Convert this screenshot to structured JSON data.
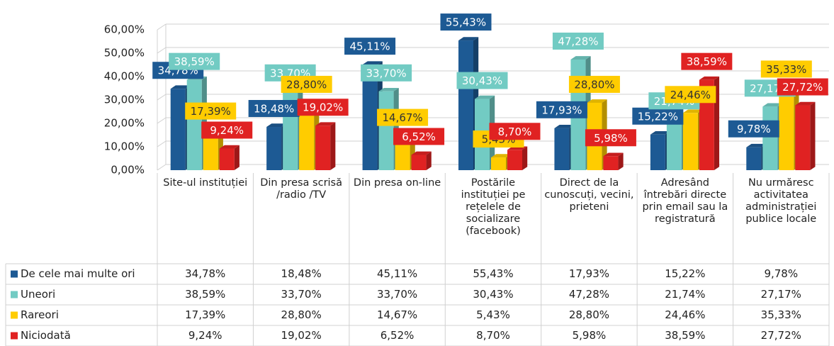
{
  "chart_data": {
    "type": "bar",
    "categories": [
      "Site-ul instituției",
      "Din presa scrisă /radio /TV",
      "Din presa on-line",
      "Postările instituției pe rețelele de socializare (facebook)",
      "Direct de la cunoscuți, vecini, prieteni",
      "Adresând întrebări directe prin email sau la registratură",
      "Nu urmăresc activitatea administrației publice locale"
    ],
    "series": [
      {
        "name": "De cele mai multe ori",
        "color": "#1d5a94",
        "values": [
          34.78,
          18.48,
          45.11,
          55.43,
          17.93,
          15.22,
          9.78
        ],
        "value_labels": [
          "34,78%",
          "18,48%",
          "45,11%",
          "55,43%",
          "17,93%",
          "15,22%",
          "9,78%"
        ]
      },
      {
        "name": "Uneori",
        "color": "#72cbc3",
        "values": [
          38.59,
          33.7,
          33.7,
          30.43,
          47.28,
          21.74,
          27.17
        ],
        "value_labels": [
          "38,59%",
          "33,70%",
          "33,70%",
          "30,43%",
          "47,28%",
          "21,74%",
          "27,17%"
        ]
      },
      {
        "name": "Rareori",
        "color": "#ffcc00",
        "values": [
          17.39,
          28.8,
          14.67,
          5.43,
          28.8,
          24.46,
          35.33
        ],
        "value_labels": [
          "17,39%",
          "28,80%",
          "14,67%",
          "5,43%",
          "28,80%",
          "24,46%",
          "35,33%"
        ]
      },
      {
        "name": "Niciodată",
        "color": "#e02222",
        "values": [
          9.24,
          19.02,
          6.52,
          8.7,
          5.98,
          38.59,
          27.72
        ],
        "value_labels": [
          "9,24%",
          "19,02%",
          "6,52%",
          "8,70%",
          "5,98%",
          "38,59%",
          "27,72%"
        ]
      }
    ],
    "ylim": [
      0,
      60
    ],
    "yticks": [
      {
        "value": 0,
        "label": "0,00%"
      },
      {
        "value": 10,
        "label": "10,00%"
      },
      {
        "value": 20,
        "label": "20,00%"
      },
      {
        "value": 30,
        "label": "30,00%"
      },
      {
        "value": 40,
        "label": "40,00%"
      },
      {
        "value": 50,
        "label": "50,00%"
      },
      {
        "value": 60,
        "label": "60,00%"
      }
    ],
    "grid": true
  }
}
